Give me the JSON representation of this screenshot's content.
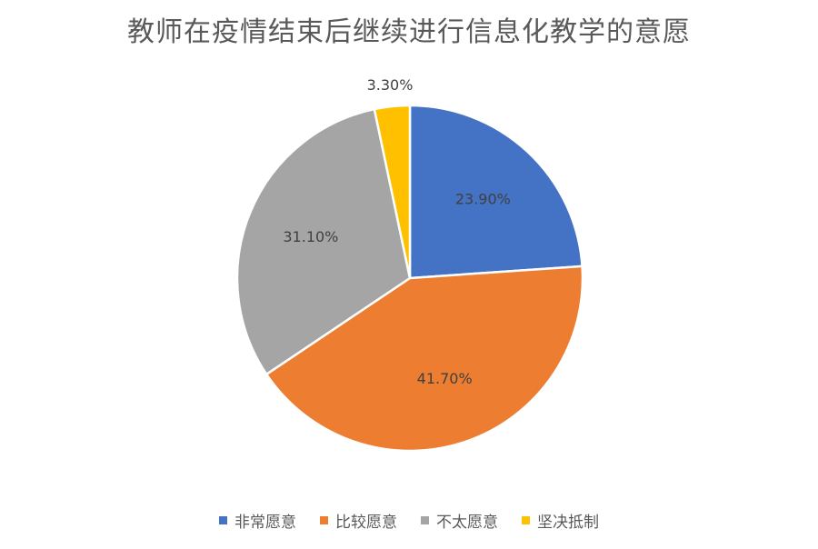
{
  "chart_data": {
    "type": "pie",
    "title": "教师在疫情结束后继续进行信息化教学的意愿",
    "categories": [
      "非常愿意",
      "比较愿意",
      "不太愿意",
      "坚决抵制"
    ],
    "values": [
      23.9,
      41.7,
      31.1,
      3.3
    ],
    "labels": [
      "23.90%",
      "41.70%",
      "31.10%",
      "3.30%"
    ],
    "colors": [
      "#4472C4",
      "#ED7D31",
      "#A5A5A5",
      "#FFC000"
    ],
    "legend_position": "bottom"
  }
}
